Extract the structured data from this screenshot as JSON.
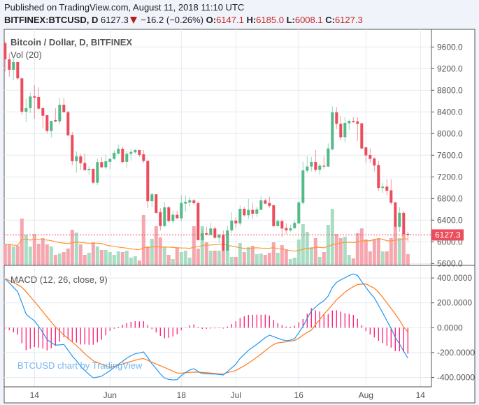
{
  "header": {
    "published": "Published on TradingView.com, August 11, 2018 11:10 UTC",
    "symbol": "BITFINEX:BTCUSD, D",
    "last": "6127.3",
    "direction_icon": "triangle-down-icon",
    "change": "−16.2 (−0.26%)",
    "o_label": "O:",
    "o_value": "6147.1",
    "h_label": "H:",
    "h_value": "6185.0",
    "l_label": "L:",
    "l_value": "6008.1",
    "c_label": "C:",
    "c_value": "6127.3"
  },
  "colors": {
    "up": "#53b987",
    "down": "#eb4d5c",
    "vol_up": "#a9dcc3",
    "vol_down": "#f5a6ae",
    "vol_ma": "#ff9830",
    "macd": "#2196f3",
    "signal": "#ff7a1a",
    "hist": "#ff1a75",
    "last_price": "#eb4d5c"
  },
  "chart_data": {
    "type": "candlestick",
    "title": "Bitcoin / Dollar, D, BITFINEX",
    "volume_label": "Vol (20)",
    "macd_label": "MACD (12, 26, close, 9)",
    "watermark": "BTCUSD chart by TradingView",
    "last_price_label": "6127.3",
    "price_ylim": [
      5600,
      9600
    ],
    "price_ticks": [
      "9600.0",
      "9200.0",
      "8800.0",
      "8400.0",
      "8000.0",
      "7600.0",
      "7200.0",
      "6800.0",
      "6400.0",
      "6000.0",
      "5600.0"
    ],
    "macd_ylim": [
      -400,
      400
    ],
    "macd_ticks": [
      "400.0000",
      "200.0000",
      "0.0000",
      "-200.0000",
      "-400.0000"
    ],
    "x_ticks": [
      {
        "label": "14",
        "date": "2018-05-14"
      },
      {
        "label": "Jun",
        "date": "2018-06-01"
      },
      {
        "label": "18",
        "date": "2018-06-18"
      },
      {
        "label": "Jul",
        "date": "2018-07-01"
      },
      {
        "label": "16",
        "date": "2018-07-16"
      },
      {
        "label": "Aug",
        "date": "2018-08-01"
      },
      {
        "label": "14",
        "date": "2018-08-14"
      }
    ],
    "grid": true,
    "dates": [
      "2018-05-07",
      "2018-05-08",
      "2018-05-09",
      "2018-05-10",
      "2018-05-11",
      "2018-05-12",
      "2018-05-13",
      "2018-05-14",
      "2018-05-15",
      "2018-05-16",
      "2018-05-17",
      "2018-05-18",
      "2018-05-19",
      "2018-05-20",
      "2018-05-21",
      "2018-05-22",
      "2018-05-23",
      "2018-05-24",
      "2018-05-25",
      "2018-05-26",
      "2018-05-27",
      "2018-05-28",
      "2018-05-29",
      "2018-05-30",
      "2018-05-31",
      "2018-06-01",
      "2018-06-02",
      "2018-06-03",
      "2018-06-04",
      "2018-06-05",
      "2018-06-06",
      "2018-06-07",
      "2018-06-08",
      "2018-06-09",
      "2018-06-10",
      "2018-06-11",
      "2018-06-12",
      "2018-06-13",
      "2018-06-14",
      "2018-06-15",
      "2018-06-16",
      "2018-06-17",
      "2018-06-18",
      "2018-06-19",
      "2018-06-20",
      "2018-06-21",
      "2018-06-22",
      "2018-06-23",
      "2018-06-24",
      "2018-06-25",
      "2018-06-26",
      "2018-06-27",
      "2018-06-28",
      "2018-06-29",
      "2018-06-30",
      "2018-07-01",
      "2018-07-02",
      "2018-07-03",
      "2018-07-04",
      "2018-07-05",
      "2018-07-06",
      "2018-07-07",
      "2018-07-08",
      "2018-07-09",
      "2018-07-10",
      "2018-07-11",
      "2018-07-12",
      "2018-07-13",
      "2018-07-14",
      "2018-07-15",
      "2018-07-16",
      "2018-07-17",
      "2018-07-18",
      "2018-07-19",
      "2018-07-20",
      "2018-07-21",
      "2018-07-22",
      "2018-07-23",
      "2018-07-24",
      "2018-07-25",
      "2018-07-26",
      "2018-07-27",
      "2018-07-28",
      "2018-07-29",
      "2018-07-30",
      "2018-07-31",
      "2018-08-01",
      "2018-08-02",
      "2018-08-03",
      "2018-08-04",
      "2018-08-05",
      "2018-08-06",
      "2018-08-07",
      "2018-08-08",
      "2018-08-09",
      "2018-08-10",
      "2018-08-11"
    ],
    "open": [
      9670,
      9372,
      9179,
      9320,
      9020,
      8405,
      8470,
      8690,
      8675,
      8470,
      8340,
      8048,
      8250,
      8225,
      8534,
      8396,
      7975,
      7489,
      7579,
      7458,
      7325,
      7347,
      7093,
      7472,
      7377,
      7476,
      7532,
      7630,
      7720,
      7476,
      7626,
      7652,
      7695,
      7617,
      7497,
      6750,
      6878,
      6547,
      6290,
      6637,
      6384,
      6500,
      6435,
      6706,
      6728,
      6766,
      6715,
      6031,
      6160,
      6134,
      6246,
      6074,
      6134,
      5837,
      6212,
      6392,
      6340,
      6610,
      6490,
      6590,
      6520,
      6590,
      6766,
      6715,
      6676,
      6290,
      6384,
      6255,
      6212,
      6250,
      6341,
      6719,
      7313,
      7390,
      7475,
      7330,
      7407,
      7390,
      7708,
      8392,
      8181,
      7932,
      8190,
      8233,
      8224,
      8190,
      7746,
      7604,
      7540,
      7420,
      6995,
      7020,
      6952,
      6728,
      6277,
      6535,
      6147.1
    ],
    "high": [
      9700,
      9480,
      9394,
      9330,
      9030,
      8640,
      8757,
      8900,
      8856,
      8480,
      8350,
      8240,
      8470,
      8663,
      8663,
      8420,
      8030,
      7674,
      7630,
      7630,
      7400,
      7350,
      7536,
      7566,
      7610,
      7540,
      7695,
      7790,
      7760,
      7680,
      7720,
      7717,
      7700,
      7695,
      7500,
      6908,
      6880,
      6620,
      6736,
      6660,
      6577,
      6577,
      6857,
      6857,
      6835,
      6790,
      6750,
      6233,
      6280,
      6350,
      6280,
      6150,
      6212,
      6298,
      6547,
      6450,
      6675,
      6650,
      6792,
      6720,
      6650,
      6840,
      6800,
      6835,
      6680,
      6418,
      6400,
      6341,
      6320,
      6400,
      6750,
      7480,
      7587,
      7566,
      7695,
      7450,
      7580,
      7820,
      8503,
      8490,
      8327,
      8306,
      8263,
      8306,
      8306,
      8200,
      7750,
      7725,
      7560,
      7497,
      7093,
      7158,
      7158,
      6740,
      6640,
      6577,
      6185.0
    ],
    "low": [
      9150,
      9050,
      8985,
      9000,
      8340,
      8210,
      8380,
      8275,
      8440,
      8100,
      8000,
      7930,
      8210,
      8170,
      8390,
      7960,
      7416,
      7274,
      7330,
      7320,
      7235,
      7072,
      7050,
      7370,
      7338,
      7338,
      7515,
      7620,
      7460,
      7373,
      7500,
      7630,
      7566,
      7458,
      6620,
      6640,
      6520,
      6212,
      6280,
      6360,
      6341,
      6430,
      6384,
      6560,
      6650,
      6680,
      6020,
      6018,
      6120,
      6120,
      6060,
      5983,
      5825,
      5825,
      6160,
      6260,
      6298,
      6460,
      6427,
      6430,
      6460,
      6590,
      6690,
      6628,
      6270,
      6280,
      6087,
      6147,
      6180,
      6240,
      6330,
      6685,
      7274,
      7300,
      7290,
      7244,
      7350,
      7380,
      7690,
      8082,
      7880,
      7837,
      8069,
      8200,
      7867,
      7704,
      7458,
      7458,
      7300,
      6938,
      6900,
      6857,
      6685,
      6260,
      6186,
      6130,
      6008.1
    ],
    "close": [
      9372,
      9179,
      9320,
      9020,
      8405,
      8470,
      8685,
      8665,
      8460,
      8330,
      8048,
      8233,
      8225,
      8534,
      8396,
      7966,
      7489,
      7579,
      7454,
      7325,
      7347,
      7093,
      7472,
      7377,
      7489,
      7532,
      7644,
      7720,
      7472,
      7626,
      7661,
      7695,
      7605,
      7493,
      6750,
      6878,
      6534,
      6290,
      6637,
      6384,
      6500,
      6435,
      6719,
      6740,
      6770,
      6715,
      6031,
      6160,
      6134,
      6246,
      6074,
      6134,
      5837,
      6212,
      6392,
      6340,
      6610,
      6490,
      6590,
      6520,
      6600,
      6766,
      6706,
      6663,
      6290,
      6384,
      6246,
      6212,
      6250,
      6350,
      6728,
      7320,
      7390,
      7475,
      7330,
      7407,
      7390,
      7725,
      8392,
      8181,
      7932,
      8198,
      8233,
      8211,
      8181,
      7725,
      7596,
      7532,
      7411,
      6995,
      7020,
      6943,
      6720,
      6277,
      6535,
      6143.5,
      6127.3
    ],
    "volume": [
      30,
      30,
      27,
      28,
      67,
      44,
      27,
      45,
      31,
      39,
      30,
      27,
      15,
      17,
      19,
      24,
      51,
      47,
      30,
      15,
      18,
      33,
      27,
      22,
      22,
      19,
      15,
      20,
      19,
      21,
      11,
      13,
      7,
      72,
      27,
      38,
      56,
      40,
      27,
      15,
      9,
      25,
      19,
      21,
      11,
      56,
      24,
      56,
      33,
      21,
      21,
      21,
      21,
      28,
      12,
      12,
      32,
      19,
      26,
      28,
      16,
      17,
      15,
      18,
      33,
      18,
      29,
      23,
      9,
      11,
      37,
      59,
      48,
      26,
      39,
      12,
      19,
      58,
      81,
      45,
      39,
      41,
      15,
      10,
      46,
      53,
      37,
      20,
      38,
      39,
      20,
      20,
      39,
      55,
      39,
      45,
      16
    ],
    "volume_ma_period": 20,
    "macd": [
      393,
      360,
      325,
      290,
      200,
      110,
      80,
      55,
      10,
      -40,
      -95,
      -120,
      -140,
      -138,
      -135,
      -180,
      -228,
      -265,
      -310,
      -345,
      -375,
      -403,
      -398,
      -390,
      -368,
      -345,
      -320,
      -295,
      -270,
      -245,
      -225,
      -210,
      -203,
      -195,
      -240,
      -290,
      -330,
      -372,
      -405,
      -416,
      -420,
      -418,
      -385,
      -360,
      -340,
      -330,
      -352,
      -370,
      -371,
      -372,
      -373,
      -376,
      -380,
      -352,
      -323,
      -294,
      -247,
      -215,
      -182,
      -158,
      -133,
      -108,
      -80,
      -60,
      -72,
      -85,
      -97,
      -105,
      -100,
      -88,
      -40,
      10,
      75,
      137,
      165,
      195,
      218,
      255,
      324,
      365,
      385,
      402,
      420,
      433,
      420,
      370,
      325,
      280,
      240,
      180,
      120,
      55,
      -5,
      -79,
      -130,
      -190,
      -244
    ],
    "signal": [
      393,
      380,
      362,
      346,
      325,
      290,
      250,
      210,
      170,
      128,
      87,
      46,
      6,
      -25,
      -60,
      -85,
      -115,
      -145,
      -175,
      -210,
      -238,
      -266,
      -280,
      -293,
      -306,
      -320,
      -312,
      -302,
      -292,
      -282,
      -272,
      -262,
      -253,
      -248,
      -262,
      -278,
      -292,
      -306,
      -320,
      -335,
      -350,
      -365,
      -366,
      -362,
      -359,
      -357,
      -358,
      -360,
      -362,
      -365,
      -368,
      -372,
      -373,
      -362,
      -352,
      -345,
      -325,
      -307,
      -285,
      -262,
      -238,
      -212,
      -185,
      -158,
      -135,
      -122,
      -118,
      -114,
      -108,
      -103,
      -85,
      -60,
      -38,
      -20,
      25,
      65,
      110,
      145,
      185,
      225,
      255,
      285,
      310,
      330,
      348,
      350,
      352,
      335,
      318,
      285,
      245,
      200,
      155,
      110,
      60,
      5,
      -35
    ]
  }
}
